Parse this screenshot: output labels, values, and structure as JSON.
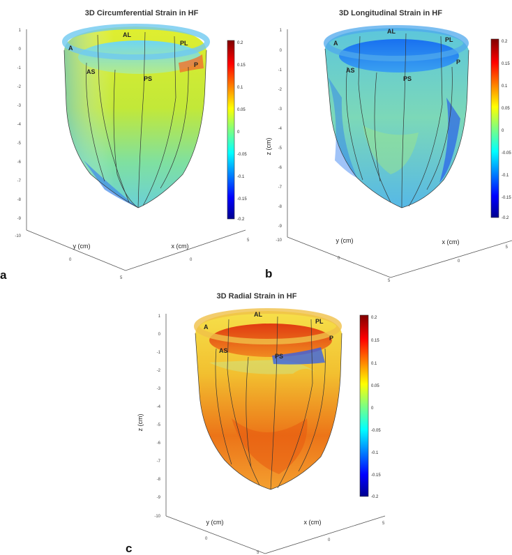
{
  "panels": [
    {
      "id": "a",
      "label": "a",
      "title": "3D Circumferential Strain in HF",
      "z_axis_label": "",
      "x_axis_label": "x (cm)",
      "y_axis_label": "y (cm)",
      "z_ticks": [
        "1",
        "0",
        "-1",
        "-2",
        "-3",
        "-4",
        "-5",
        "-6",
        "-7",
        "-8",
        "-9",
        "-10"
      ],
      "y_ticks": [
        "0",
        "5"
      ],
      "x_ticks": [
        "0",
        "5"
      ],
      "segments": [
        "A",
        "AL",
        "PL",
        "AS",
        "PS",
        "P"
      ],
      "colorbar_ticks": [
        "0.2",
        "0.15",
        "0.1",
        "0.05",
        "0",
        "-0.05",
        "-0.1",
        "-0.15",
        "-0.2"
      ]
    },
    {
      "id": "b",
      "label": "b",
      "title": "3D Longitudinal Strain in HF",
      "z_axis_label": "z (cm)",
      "x_axis_label": "x (cm)",
      "y_axis_label": "y (cm)",
      "z_ticks": [
        "1",
        "0",
        "-1",
        "-2",
        "-3",
        "-4",
        "-5",
        "-6",
        "-7",
        "-8",
        "-9",
        "-10"
      ],
      "y_ticks": [
        "0",
        "5"
      ],
      "x_ticks": [
        "0",
        "5"
      ],
      "segments": [
        "A",
        "AL",
        "PL",
        "AS",
        "PS",
        "P"
      ],
      "colorbar_ticks": [
        "0.2",
        "0.15",
        "0.1",
        "0.05",
        "0",
        "-0.05",
        "-0.1",
        "-0.15",
        "-0.2"
      ]
    },
    {
      "id": "c",
      "label": "c",
      "title": "3D Radial Strain in HF",
      "z_axis_label": "z (cm)",
      "x_axis_label": "x (cm)",
      "y_axis_label": "y (cm)",
      "z_ticks": [
        "1",
        "0",
        "-1",
        "-2",
        "-3",
        "-4",
        "-5",
        "-6",
        "-7",
        "-8",
        "-9",
        "-10"
      ],
      "y_ticks": [
        "0",
        "5"
      ],
      "x_ticks": [
        "0",
        "5"
      ],
      "segments": [
        "A",
        "AL",
        "PL",
        "AS",
        "PS",
        "P"
      ],
      "colorbar_ticks": [
        "0.2",
        "0.15",
        "0.1",
        "0.05",
        "0",
        "-0.05",
        "-0.1",
        "-0.15",
        "-0.2"
      ]
    }
  ],
  "colormap": [
    "#00008f",
    "#0000ff",
    "#0080ff",
    "#00ffff",
    "#80ff80",
    "#ffff00",
    "#ff8000",
    "#ff0000",
    "#800000"
  ]
}
